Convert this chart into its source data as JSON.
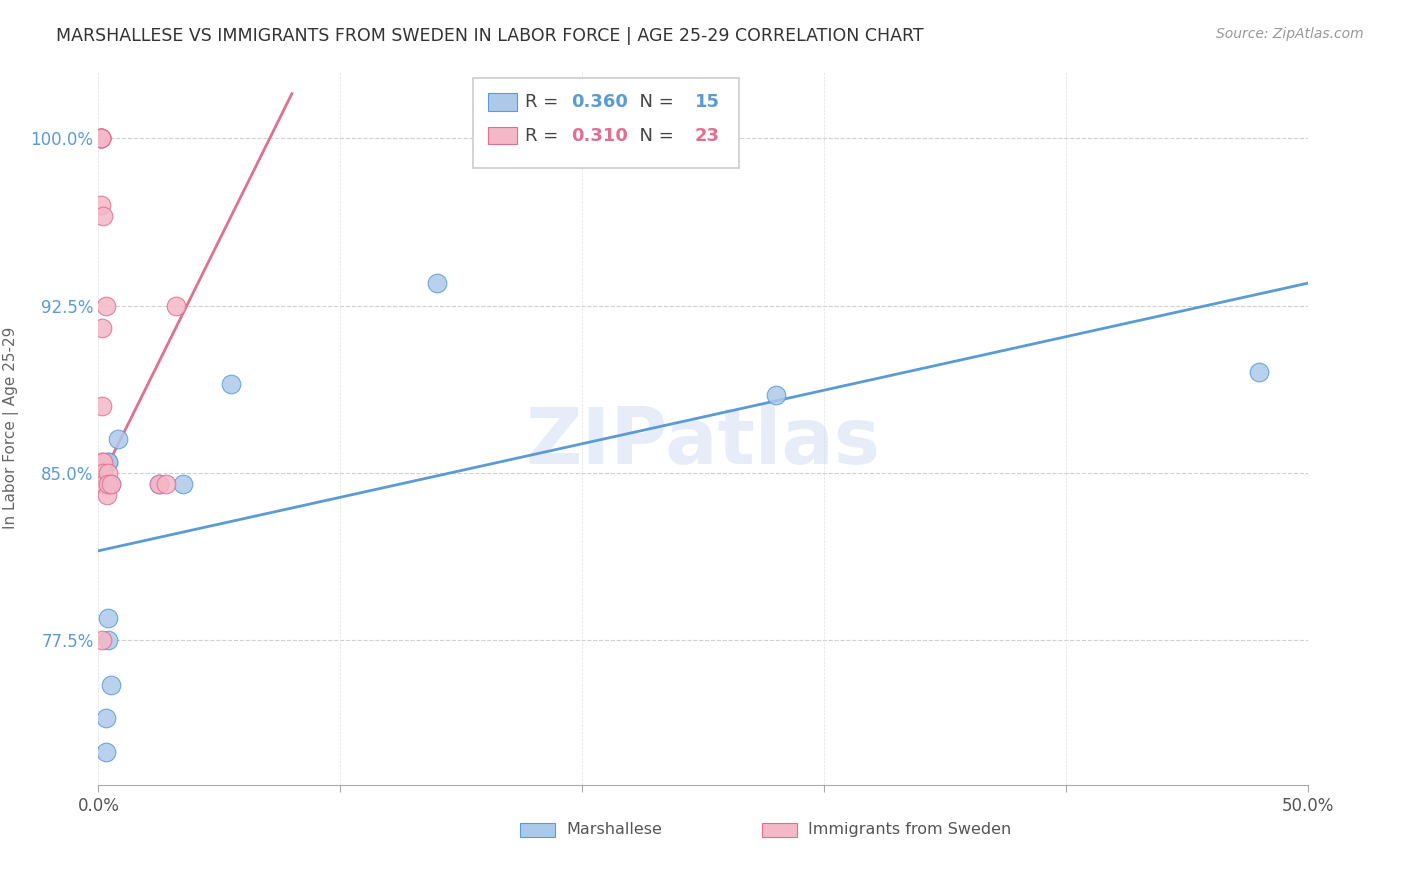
{
  "title": "MARSHALLESE VS IMMIGRANTS FROM SWEDEN IN LABOR FORCE | AGE 25-29 CORRELATION CHART",
  "source": "Source: ZipAtlas.com",
  "ylabel": "In Labor Force | Age 25-29",
  "series1_label": "Marshallese",
  "series2_label": "Immigrants from Sweden",
  "series1_R": "0.360",
  "series1_N": "15",
  "series2_R": "0.310",
  "series2_N": "23",
  "series1_color": "#adc9ea",
  "series1_line_color": "#5b9bd5",
  "series2_color": "#f4b8c8",
  "series2_line_color": "#e07090",
  "watermark": "ZIPatlas",
  "xmin": 0.0,
  "xmax": 50.0,
  "ymin": 71.0,
  "ymax": 103.0,
  "yticks": [
    77.5,
    85.0,
    92.5,
    100.0
  ],
  "xticks": [
    0.0,
    50.0
  ],
  "xgrid_ticks": [
    0.0,
    10.0,
    20.0,
    30.0,
    40.0,
    50.0
  ],
  "series1_x": [
    0.3,
    0.3,
    0.5,
    2.5,
    3.5,
    0.5,
    0.8,
    0.4,
    0.4,
    5.5,
    28.0,
    48.0,
    0.4,
    0.4,
    14.0
  ],
  "series1_y": [
    72.5,
    74.0,
    75.5,
    84.5,
    84.5,
    84.5,
    86.5,
    85.5,
    85.5,
    89.0,
    88.5,
    89.5,
    77.5,
    78.5,
    93.5
  ],
  "series2_x": [
    0.1,
    0.1,
    0.1,
    0.1,
    0.1,
    0.1,
    0.1,
    0.15,
    0.15,
    0.15,
    0.2,
    0.2,
    0.25,
    0.3,
    0.35,
    0.4,
    0.4,
    0.5,
    2.5,
    2.8,
    3.2,
    0.15,
    0.2
  ],
  "series2_y": [
    100.0,
    100.0,
    100.0,
    100.0,
    100.0,
    100.0,
    97.0,
    91.5,
    88.0,
    85.5,
    85.5,
    85.0,
    84.5,
    92.5,
    84.0,
    85.0,
    84.5,
    84.5,
    84.5,
    84.5,
    92.5,
    77.5,
    96.5
  ],
  "series1_trend_x": [
    0.0,
    50.0
  ],
  "series1_trend_y": [
    81.5,
    93.5
  ],
  "series2_trend_x": [
    0.0,
    8.0
  ],
  "series2_trend_y": [
    84.5,
    102.0
  ]
}
